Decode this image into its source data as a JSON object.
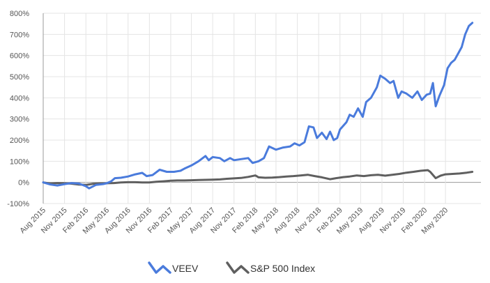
{
  "chart_data": {
    "type": "line",
    "y_unit": "%",
    "ylim": [
      -100,
      800
    ],
    "y_ticks": [
      "-100%",
      "0%",
      "100%",
      "200%",
      "300%",
      "400%",
      "500%",
      "600%",
      "700%",
      "800%"
    ],
    "x_ticks": [
      "Aug 2015",
      "Nov 2015",
      "Feb 2016",
      "May 2016",
      "Aug 2016",
      "Nov 2016",
      "Feb 2017",
      "May 2017",
      "Aug 2017",
      "Nov 2017",
      "Feb 2018",
      "May 2018",
      "Aug 2018",
      "Nov 2018",
      "Feb 2019",
      "May 2019",
      "Aug 2019",
      "Nov 2019",
      "Feb 2020",
      "May 2020"
    ],
    "x_range": [
      "2015-08",
      "2020-10"
    ],
    "grid": true,
    "legend_position": "bottom",
    "series": [
      {
        "name": "VEEV",
        "color": "#4a7bdc",
        "points": [
          [
            "2015-08-01",
            0
          ],
          [
            "2015-09-01",
            -10
          ],
          [
            "2015-10-01",
            -15
          ],
          [
            "2015-11-01",
            -8
          ],
          [
            "2015-12-01",
            -3
          ],
          [
            "2016-01-01",
            -5
          ],
          [
            "2016-02-01",
            -18
          ],
          [
            "2016-02-15",
            -28
          ],
          [
            "2016-03-15",
            -12
          ],
          [
            "2016-04-15",
            -8
          ],
          [
            "2016-05-01",
            -4
          ],
          [
            "2016-05-20",
            5
          ],
          [
            "2016-06-05",
            20
          ],
          [
            "2016-07-01",
            22
          ],
          [
            "2016-08-01",
            28
          ],
          [
            "2016-09-01",
            38
          ],
          [
            "2016-10-01",
            45
          ],
          [
            "2016-10-20",
            30
          ],
          [
            "2016-11-15",
            35
          ],
          [
            "2016-12-15",
            60
          ],
          [
            "2017-01-15",
            50
          ],
          [
            "2017-02-15",
            50
          ],
          [
            "2017-03-15",
            55
          ],
          [
            "2017-04-01",
            65
          ],
          [
            "2017-05-01",
            80
          ],
          [
            "2017-06-01",
            100
          ],
          [
            "2017-07-01",
            125
          ],
          [
            "2017-07-15",
            105
          ],
          [
            "2017-08-01",
            120
          ],
          [
            "2017-09-01",
            115
          ],
          [
            "2017-09-20",
            100
          ],
          [
            "2017-10-15",
            115
          ],
          [
            "2017-11-01",
            105
          ],
          [
            "2017-12-01",
            110
          ],
          [
            "2018-01-01",
            115
          ],
          [
            "2018-01-20",
            92
          ],
          [
            "2018-02-15",
            100
          ],
          [
            "2018-03-10",
            115
          ],
          [
            "2018-04-01",
            170
          ],
          [
            "2018-05-01",
            155
          ],
          [
            "2018-06-01",
            165
          ],
          [
            "2018-07-01",
            170
          ],
          [
            "2018-07-20",
            185
          ],
          [
            "2018-08-10",
            175
          ],
          [
            "2018-09-01",
            190
          ],
          [
            "2018-09-20",
            265
          ],
          [
            "2018-10-10",
            260
          ],
          [
            "2018-10-25",
            210
          ],
          [
            "2018-11-15",
            235
          ],
          [
            "2018-12-05",
            205
          ],
          [
            "2018-12-20",
            240
          ],
          [
            "2019-01-05",
            200
          ],
          [
            "2019-01-20",
            210
          ],
          [
            "2019-02-01",
            250
          ],
          [
            "2019-03-01",
            285
          ],
          [
            "2019-03-15",
            320
          ],
          [
            "2019-04-01",
            310
          ],
          [
            "2019-04-20",
            350
          ],
          [
            "2019-05-10",
            310
          ],
          [
            "2019-05-25",
            380
          ],
          [
            "2019-06-15",
            400
          ],
          [
            "2019-07-10",
            450
          ],
          [
            "2019-07-25",
            505
          ],
          [
            "2019-08-15",
            490
          ],
          [
            "2019-09-05",
            470
          ],
          [
            "2019-09-20",
            480
          ],
          [
            "2019-10-10",
            400
          ],
          [
            "2019-10-25",
            430
          ],
          [
            "2019-11-15",
            420
          ],
          [
            "2019-12-10",
            400
          ],
          [
            "2020-01-01",
            430
          ],
          [
            "2020-01-20",
            390
          ],
          [
            "2020-02-10",
            415
          ],
          [
            "2020-02-25",
            420
          ],
          [
            "2020-03-08",
            470
          ],
          [
            "2020-03-20",
            360
          ],
          [
            "2020-04-05",
            410
          ],
          [
            "2020-04-25",
            460
          ],
          [
            "2020-05-10",
            540
          ],
          [
            "2020-05-25",
            565
          ],
          [
            "2020-06-10",
            580
          ],
          [
            "2020-06-25",
            610
          ],
          [
            "2020-07-10",
            640
          ],
          [
            "2020-07-25",
            700
          ],
          [
            "2020-08-10",
            740
          ],
          [
            "2020-08-25",
            755
          ]
        ]
      },
      {
        "name": "S&P 500 Index",
        "color": "#5f5f5f",
        "points": [
          [
            "2015-08-01",
            0
          ],
          [
            "2015-09-01",
            -5
          ],
          [
            "2015-10-01",
            -3
          ],
          [
            "2015-11-01",
            -4
          ],
          [
            "2015-12-01",
            -6
          ],
          [
            "2016-01-01",
            -10
          ],
          [
            "2016-02-01",
            -12
          ],
          [
            "2016-03-01",
            -7
          ],
          [
            "2016-04-01",
            -5
          ],
          [
            "2016-05-01",
            -4
          ],
          [
            "2016-06-01",
            -3
          ],
          [
            "2016-07-01",
            0
          ],
          [
            "2016-08-01",
            1
          ],
          [
            "2016-09-01",
            1
          ],
          [
            "2016-10-01",
            0
          ],
          [
            "2016-11-01",
            0
          ],
          [
            "2016-12-01",
            3
          ],
          [
            "2017-01-01",
            5
          ],
          [
            "2017-02-01",
            8
          ],
          [
            "2017-03-01",
            9
          ],
          [
            "2017-04-01",
            9
          ],
          [
            "2017-05-01",
            10
          ],
          [
            "2017-06-01",
            11
          ],
          [
            "2017-07-01",
            12
          ],
          [
            "2017-08-01",
            13
          ],
          [
            "2017-09-01",
            14
          ],
          [
            "2017-10-01",
            17
          ],
          [
            "2017-11-01",
            19
          ],
          [
            "2017-12-01",
            21
          ],
          [
            "2018-01-01",
            26
          ],
          [
            "2018-02-01",
            33
          ],
          [
            "2018-02-15",
            24
          ],
          [
            "2018-03-15",
            22
          ],
          [
            "2018-04-15",
            23
          ],
          [
            "2018-05-15",
            25
          ],
          [
            "2018-06-15",
            28
          ],
          [
            "2018-07-15",
            30
          ],
          [
            "2018-08-15",
            33
          ],
          [
            "2018-09-15",
            36
          ],
          [
            "2018-10-15",
            30
          ],
          [
            "2018-11-15",
            24
          ],
          [
            "2018-12-20",
            15
          ],
          [
            "2019-01-15",
            20
          ],
          [
            "2019-02-15",
            25
          ],
          [
            "2019-03-15",
            28
          ],
          [
            "2019-04-15",
            33
          ],
          [
            "2019-05-15",
            30
          ],
          [
            "2019-06-15",
            34
          ],
          [
            "2019-07-15",
            36
          ],
          [
            "2019-08-15",
            32
          ],
          [
            "2019-09-15",
            36
          ],
          [
            "2019-10-15",
            40
          ],
          [
            "2019-11-15",
            46
          ],
          [
            "2019-12-15",
            50
          ],
          [
            "2020-01-15",
            55
          ],
          [
            "2020-02-15",
            58
          ],
          [
            "2020-02-25",
            50
          ],
          [
            "2020-03-20",
            20
          ],
          [
            "2020-04-10",
            32
          ],
          [
            "2020-05-01",
            38
          ],
          [
            "2020-06-01",
            40
          ],
          [
            "2020-07-01",
            42
          ],
          [
            "2020-08-01",
            46
          ],
          [
            "2020-08-25",
            50
          ]
        ]
      }
    ]
  }
}
